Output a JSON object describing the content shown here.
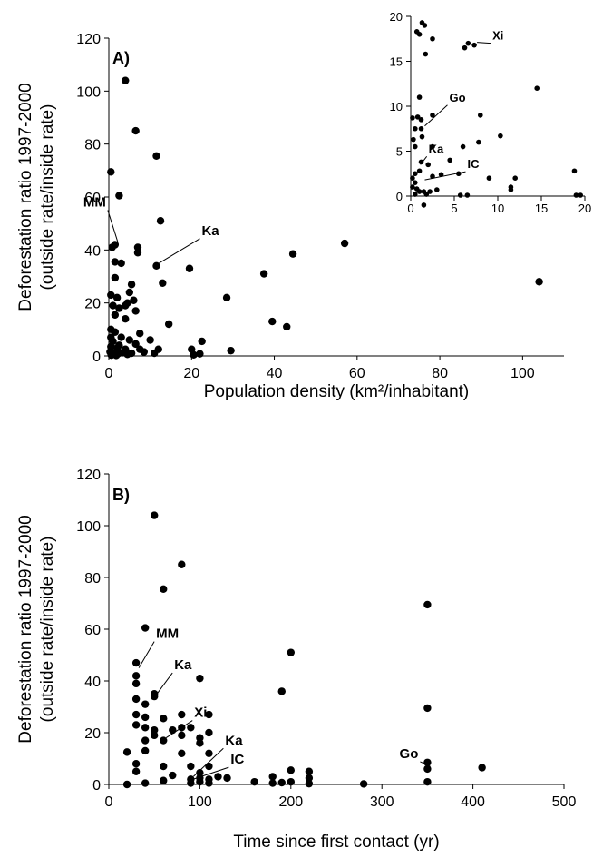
{
  "chart_data": [
    {
      "type": "scatter",
      "panel_label": "A)",
      "xlabel": "Population density (km²/inhabitant)",
      "ylabel": "Deforestation ratio 1997-2000\n(outside rate/inside rate)",
      "xlim": [
        0,
        110
      ],
      "ylim": [
        0,
        120
      ],
      "xticks": [
        0,
        20,
        40,
        60,
        80,
        100
      ],
      "yticks": [
        0,
        20,
        40,
        60,
        80,
        100,
        120
      ],
      "points": [
        [
          4,
          104
        ],
        [
          6.5,
          85
        ],
        [
          11.5,
          75.5
        ],
        [
          0.5,
          69.5
        ],
        [
          2.5,
          60.5
        ],
        [
          12.5,
          51
        ],
        [
          1.5,
          42
        ],
        [
          7,
          41
        ],
        [
          7,
          39
        ],
        [
          0.8,
          41
        ],
        [
          1.5,
          35.5
        ],
        [
          3,
          35
        ],
        [
          11.5,
          34
        ],
        [
          5.5,
          27
        ],
        [
          13,
          27.5
        ],
        [
          19.5,
          33
        ],
        [
          1.5,
          29.5
        ],
        [
          44.5,
          38.5
        ],
        [
          57,
          42.5
        ],
        [
          37.5,
          31
        ],
        [
          104,
          28
        ],
        [
          0.5,
          23
        ],
        [
          2,
          22
        ],
        [
          5,
          24
        ],
        [
          6,
          21
        ],
        [
          4.5,
          20
        ],
        [
          28.5,
          22
        ],
        [
          1,
          19
        ],
        [
          2.5,
          18
        ],
        [
          4,
          19
        ],
        [
          6.5,
          17
        ],
        [
          1.5,
          15.5
        ],
        [
          4,
          14
        ],
        [
          14.5,
          12
        ],
        [
          39.5,
          13
        ],
        [
          43,
          11
        ],
        [
          0.5,
          10
        ],
        [
          1.5,
          9
        ],
        [
          7.5,
          8.5
        ],
        [
          0.5,
          7
        ],
        [
          3,
          7
        ],
        [
          5,
          6
        ],
        [
          10,
          6
        ],
        [
          1,
          5.5
        ],
        [
          2.5,
          4
        ],
        [
          6.5,
          4.5
        ],
        [
          0.5,
          3.5
        ],
        [
          2,
          3
        ],
        [
          4,
          2.5
        ],
        [
          7.5,
          2.5
        ],
        [
          12,
          2.5
        ],
        [
          20,
          2.5
        ],
        [
          22.5,
          5.5
        ],
        [
          29.5,
          2
        ],
        [
          0.3,
          1.5
        ],
        [
          1.2,
          1.0
        ],
        [
          2.2,
          0.8
        ],
        [
          3.2,
          1.2
        ],
        [
          4.5,
          0.6
        ],
        [
          5.5,
          1.0
        ],
        [
          8.5,
          1.5
        ],
        [
          11,
          1
        ],
        [
          20.5,
          0.4
        ],
        [
          22,
          0.8
        ],
        [
          0.6,
          0.3
        ],
        [
          1.8,
          0.2
        ]
      ],
      "annotations": [
        {
          "text": "MM",
          "x": 1.5,
          "y": 42
        },
        {
          "text": "Ka",
          "x": 11.5,
          "y": 34
        }
      ],
      "inset": {
        "xlim": [
          0,
          20
        ],
        "ylim": [
          0,
          20
        ],
        "xticks": [
          0,
          5,
          10,
          15,
          20
        ],
        "yticks": [
          0,
          5,
          10,
          15,
          20
        ],
        "points": [
          [
            1.3,
            19.3
          ],
          [
            1.6,
            19.0
          ],
          [
            0.7,
            18.3
          ],
          [
            1.0,
            18.0
          ],
          [
            2.5,
            17.5
          ],
          [
            1.7,
            15.8
          ],
          [
            6.2,
            16.5
          ],
          [
            6.6,
            17.0
          ],
          [
            7.3,
            16.8
          ],
          [
            1.0,
            11.0
          ],
          [
            14.5,
            12.0
          ],
          [
            0.2,
            8.7
          ],
          [
            0.8,
            8.8
          ],
          [
            1.2,
            8.5
          ],
          [
            2.5,
            9.0
          ],
          [
            8.0,
            9.0
          ],
          [
            0.5,
            7.5
          ],
          [
            1.2,
            7.5
          ],
          [
            0.3,
            6.3
          ],
          [
            1.3,
            6.6
          ],
          [
            10.3,
            6.7
          ],
          [
            0.5,
            5.5
          ],
          [
            2.5,
            5.5
          ],
          [
            6.0,
            5.5
          ],
          [
            7.8,
            6.0
          ],
          [
            4.5,
            4.0
          ],
          [
            1.2,
            3.8
          ],
          [
            2.0,
            3.5
          ],
          [
            0.5,
            2.5
          ],
          [
            1.0,
            2.8
          ],
          [
            2.5,
            2.2
          ],
          [
            3.5,
            2.4
          ],
          [
            5.5,
            2.5
          ],
          [
            0.2,
            2.0
          ],
          [
            0.5,
            1.5
          ],
          [
            9.0,
            2.0
          ],
          [
            12.0,
            2.0
          ],
          [
            0.2,
            1.0
          ],
          [
            0.7,
            0.8
          ],
          [
            1.0,
            0.5
          ],
          [
            1.5,
            0.5
          ],
          [
            2.2,
            0.5
          ],
          [
            3.0,
            0.7
          ],
          [
            11.5,
            0.7
          ],
          [
            11.5,
            1.0
          ],
          [
            0.5,
            0.2
          ],
          [
            1.8,
            0.2
          ],
          [
            5.7,
            0.1
          ],
          [
            6.5,
            0.1
          ],
          [
            19.0,
            0.1
          ],
          [
            19.5,
            0.1
          ],
          [
            18.8,
            2.8
          ],
          [
            1.5,
            -1.0
          ]
        ],
        "annotations": [
          {
            "text": "Xi",
            "x": 7.3,
            "y": 16.8
          },
          {
            "text": "Go",
            "x": 1.3,
            "y": 7.5
          },
          {
            "text": "Ka",
            "x": 0.8,
            "y": 3.2
          },
          {
            "text": "IC",
            "x": 1.3,
            "y": 1.5
          }
        ]
      }
    },
    {
      "type": "scatter",
      "panel_label": "B)",
      "xlabel": "Time since first contact (yr)",
      "ylabel": "Deforestation ratio 1997-2000\n(outside rate/inside rate)",
      "xlim": [
        0,
        500
      ],
      "ylim": [
        0,
        120
      ],
      "xticks": [
        0,
        100,
        200,
        300,
        400,
        500
      ],
      "yticks": [
        0,
        20,
        40,
        60,
        80,
        100,
        120
      ],
      "points": [
        [
          50,
          104
        ],
        [
          80,
          85
        ],
        [
          60,
          75.5
        ],
        [
          40,
          60.5
        ],
        [
          350,
          69.5
        ],
        [
          200,
          51
        ],
        [
          30,
          47
        ],
        [
          30,
          42
        ],
        [
          100,
          41
        ],
        [
          30,
          39
        ],
        [
          50,
          35
        ],
        [
          40,
          31
        ],
        [
          30,
          33
        ],
        [
          50,
          34
        ],
        [
          190,
          36
        ],
        [
          350,
          29.5
        ],
        [
          30,
          27
        ],
        [
          40,
          26
        ],
        [
          60,
          25.5
        ],
        [
          80,
          27
        ],
        [
          110,
          27
        ],
        [
          30,
          23
        ],
        [
          40,
          22
        ],
        [
          50,
          21
        ],
        [
          70,
          21
        ],
        [
          80,
          22
        ],
        [
          90,
          22
        ],
        [
          80,
          19
        ],
        [
          100,
          18
        ],
        [
          110,
          20
        ],
        [
          40,
          17
        ],
        [
          50,
          19
        ],
        [
          60,
          17
        ],
        [
          100,
          16
        ],
        [
          40,
          13
        ],
        [
          20,
          12.5
        ],
        [
          80,
          12
        ],
        [
          110,
          12
        ],
        [
          30,
          8
        ],
        [
          60,
          7
        ],
        [
          90,
          7
        ],
        [
          110,
          7
        ],
        [
          350,
          8.5
        ],
        [
          350,
          6
        ],
        [
          410,
          6.5
        ],
        [
          30,
          5
        ],
        [
          70,
          3.5
        ],
        [
          100,
          4.5
        ],
        [
          120,
          3
        ],
        [
          130,
          2.5
        ],
        [
          200,
          5.5
        ],
        [
          220,
          5
        ],
        [
          90,
          2
        ],
        [
          100,
          2.5
        ],
        [
          110,
          2
        ],
        [
          180,
          3
        ],
        [
          220,
          2.5
        ],
        [
          20,
          0
        ],
        [
          40,
          0.5
        ],
        [
          60,
          1.5
        ],
        [
          90,
          0.5
        ],
        [
          100,
          1
        ],
        [
          110,
          0.5
        ],
        [
          160,
          1
        ],
        [
          180,
          0.5
        ],
        [
          190,
          0.7
        ],
        [
          200,
          1
        ],
        [
          220,
          0.3
        ],
        [
          280,
          0.2
        ],
        [
          350,
          1
        ]
      ],
      "annotations": [
        {
          "text": "MM",
          "x": 30,
          "y": 44
        },
        {
          "text": "Ka",
          "x": 50,
          "y": 34
        },
        {
          "text": "Xi",
          "x": 60,
          "y": 17
        },
        {
          "text": "Ka",
          "x": 90,
          "y": 2
        },
        {
          "text": "IC",
          "x": 90,
          "y": 1
        },
        {
          "text": "Go",
          "x": 350,
          "y": 6
        }
      ]
    }
  ]
}
